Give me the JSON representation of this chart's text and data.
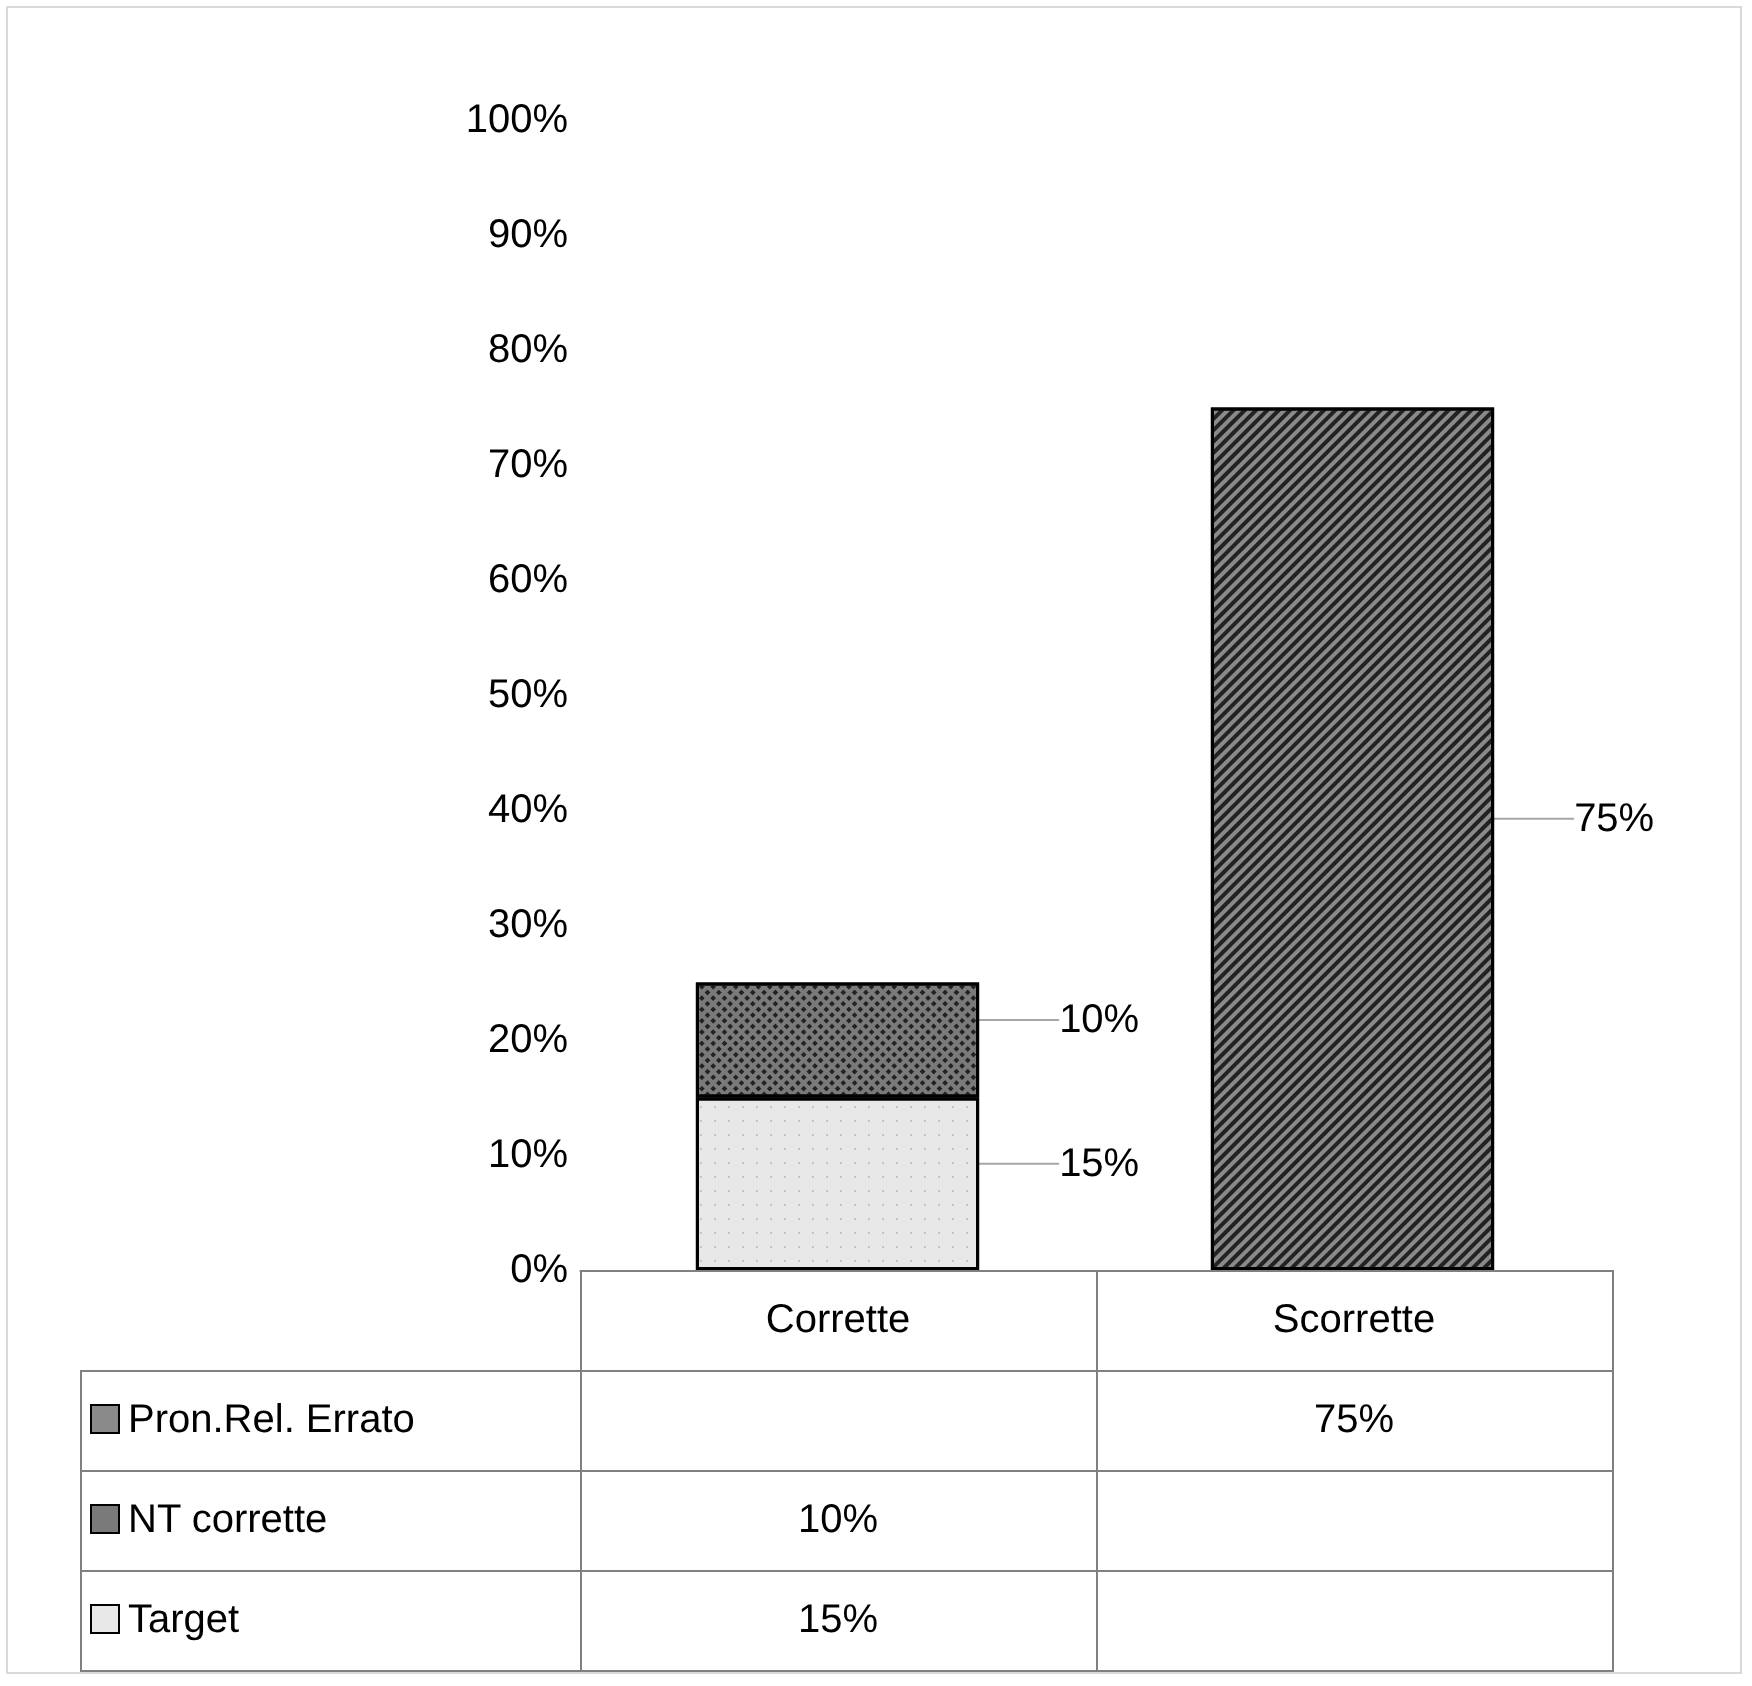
{
  "chart_data": {
    "type": "bar",
    "stacked": true,
    "categories": [
      "Corrette",
      "Scorrette"
    ],
    "series": [
      {
        "name": "Target",
        "color": "#e8e8e8",
        "values": [
          15,
          null
        ],
        "value_labels": [
          "15%",
          null
        ]
      },
      {
        "name": "NT corrette",
        "color": "#7a7a7a",
        "values": [
          10,
          null
        ],
        "value_labels": [
          "10%",
          null
        ]
      },
      {
        "name": "Pron.Rel. Errato",
        "color": "#8a8a8a",
        "values": [
          null,
          75
        ],
        "value_labels": [
          null,
          "75%"
        ]
      }
    ],
    "ylim": [
      0,
      100
    ],
    "yticks": [
      {
        "value": 0,
        "label": "0%"
      },
      {
        "value": 10,
        "label": "10%"
      },
      {
        "value": 20,
        "label": "20%"
      },
      {
        "value": 30,
        "label": "30%"
      },
      {
        "value": 40,
        "label": "40%"
      },
      {
        "value": 50,
        "label": "50%"
      },
      {
        "value": 60,
        "label": "60%"
      },
      {
        "value": 70,
        "label": "70%"
      },
      {
        "value": 80,
        "label": "80%"
      },
      {
        "value": 90,
        "label": "90%"
      },
      {
        "value": 100,
        "label": "100%"
      }
    ],
    "grid": false,
    "legend": "bottom"
  }
}
